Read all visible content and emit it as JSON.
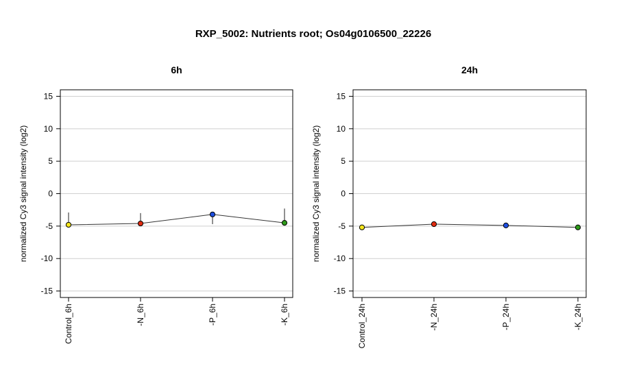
{
  "figure": {
    "title": "RXP_5002: Nutrients root; Os04g0106500_22226"
  },
  "chart_data": [
    {
      "type": "line",
      "title": "6h",
      "xlabel": "",
      "ylabel": "normalized Cy3 signal intensity (log2)",
      "ylim": [
        -16,
        16
      ],
      "yticks": [
        -15,
        -10,
        -5,
        0,
        5,
        10,
        15
      ],
      "grid": true,
      "categories": [
        "Control_6h",
        "-N_6h",
        "-P_6h",
        "-K_6h"
      ],
      "values": [
        -4.8,
        -4.6,
        -3.2,
        -4.5
      ],
      "error_upper": [
        -2.9,
        -3.0,
        -3.0,
        -2.3
      ],
      "error_lower": [
        -4.8,
        -4.6,
        -4.7,
        -4.5
      ],
      "point_colors": [
        "#f5e61e",
        "#e02b10",
        "#1f4fe0",
        "#2e9a1a"
      ]
    },
    {
      "type": "line",
      "title": "24h",
      "xlabel": "",
      "ylabel": "normalized Cy3 signal intensity (log2)",
      "ylim": [
        -16,
        16
      ],
      "yticks": [
        -15,
        -10,
        -5,
        0,
        5,
        10,
        15
      ],
      "grid": true,
      "categories": [
        "Control_24h",
        "-N_24h",
        "-P_24h",
        "-K_24h"
      ],
      "values": [
        -5.2,
        -4.7,
        -4.9,
        -5.2
      ],
      "error_upper": [
        -5.2,
        -4.3,
        -4.9,
        -5.2
      ],
      "error_lower": [
        -5.2,
        -4.7,
        -4.9,
        -5.2
      ],
      "point_colors": [
        "#f5e61e",
        "#e02b10",
        "#1f4fe0",
        "#2e9a1a"
      ]
    }
  ]
}
